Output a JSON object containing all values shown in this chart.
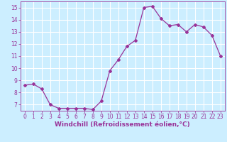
{
  "x": [
    0,
    1,
    2,
    3,
    4,
    5,
    6,
    7,
    8,
    9,
    10,
    11,
    12,
    13,
    14,
    15,
    16,
    17,
    18,
    19,
    20,
    21,
    22,
    23
  ],
  "y": [
    8.6,
    8.7,
    8.3,
    7.0,
    6.7,
    6.7,
    6.7,
    6.7,
    6.6,
    7.3,
    9.8,
    10.7,
    11.8,
    12.3,
    15.0,
    15.1,
    14.1,
    13.5,
    13.6,
    13.0,
    13.6,
    13.4,
    12.7,
    11.0
  ],
  "line_color": "#993399",
  "marker": "D",
  "marker_size": 2,
  "bg_color": "#cceeff",
  "grid_color": "#ffffff",
  "xlabel": "Windchill (Refroidissement éolien,°C)",
  "ylim": [
    6.5,
    15.5
  ],
  "xlim": [
    -0.5,
    23.5
  ],
  "yticks": [
    7,
    8,
    9,
    10,
    11,
    12,
    13,
    14,
    15
  ],
  "xticks": [
    0,
    1,
    2,
    3,
    4,
    5,
    6,
    7,
    8,
    9,
    10,
    11,
    12,
    13,
    14,
    15,
    16,
    17,
    18,
    19,
    20,
    21,
    22,
    23
  ],
  "tick_color": "#993399",
  "label_color": "#993399",
  "label_fontsize": 6.5,
  "tick_fontsize": 5.5
}
